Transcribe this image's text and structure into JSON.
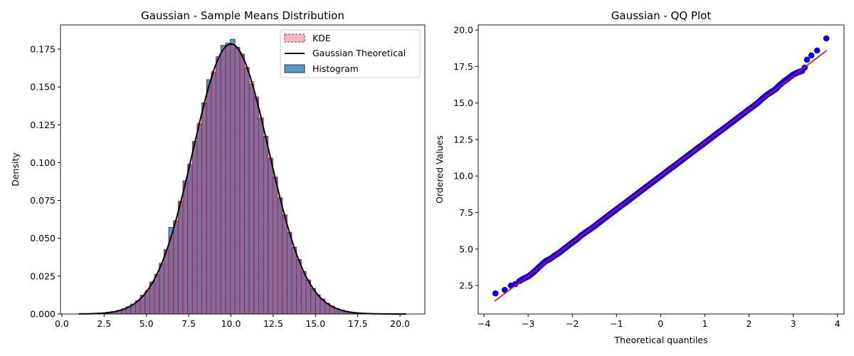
{
  "chart_data": [
    {
      "type": "bar",
      "title": "Gaussian - Sample Means Distribution",
      "xlabel": "",
      "ylabel": "Density",
      "xlim": [
        -0.08,
        21.47
      ],
      "ylim": [
        0,
        0.191
      ],
      "xticks": [
        "0.0",
        "2.5",
        "5.0",
        "7.5",
        "10.0",
        "12.5",
        "15.0",
        "17.5",
        "20.0"
      ],
      "xtick_values": [
        0,
        2.5,
        5,
        7.5,
        10,
        12.5,
        15,
        17.5,
        20
      ],
      "yticks": [
        "0.000",
        "0.025",
        "0.050",
        "0.075",
        "0.100",
        "0.125",
        "0.150",
        "0.175"
      ],
      "ytick_values": [
        0,
        0.025,
        0.05,
        0.075,
        0.1,
        0.125,
        0.15,
        0.175
      ],
      "grid": false,
      "legend": {
        "position": "top-right",
        "entries": [
          "KDE",
          "Gaussian Theoretical",
          "Histogram"
        ]
      },
      "colors": {
        "histogram": "#1f77b4",
        "kde_fill": "#dc143c",
        "kde_edge": "#dc143c",
        "theoretical": "#000000"
      },
      "bin_start": 1.0,
      "bin_width": 0.28,
      "histogram": [
        0.0001,
        0.0001,
        0.0002,
        0.0003,
        0.0006,
        0.0008,
        0.0011,
        0.0017,
        0.0024,
        0.0034,
        0.0048,
        0.0066,
        0.0085,
        0.0124,
        0.015,
        0.0212,
        0.0262,
        0.033,
        0.0425,
        0.0572,
        0.0615,
        0.0745,
        0.088,
        0.0985,
        0.114,
        0.1255,
        0.1395,
        0.1548,
        0.1595,
        0.17,
        0.1775,
        0.179,
        0.1815,
        0.1762,
        0.1718,
        0.1625,
        0.152,
        0.1435,
        0.129,
        0.1175,
        0.103,
        0.0905,
        0.0765,
        0.0655,
        0.054,
        0.044,
        0.036,
        0.028,
        0.0225,
        0.0168,
        0.0125,
        0.01,
        0.0072,
        0.0052,
        0.0038,
        0.0027,
        0.0019,
        0.0013,
        0.0009,
        0.0006,
        0.0004,
        0.0003,
        0.0002,
        0.0001,
        0.0001,
        0.0001,
        0.0001,
        0.0001,
        0.0001
      ],
      "kde": [
        0.0001,
        0.0001,
        0.0002,
        0.0003,
        0.0005,
        0.0007,
        0.001,
        0.0016,
        0.0023,
        0.0033,
        0.0046,
        0.0064,
        0.0088,
        0.0118,
        0.0157,
        0.0205,
        0.0263,
        0.0335,
        0.0417,
        0.051,
        0.0617,
        0.0735,
        0.0861,
        0.0993,
        0.1128,
        0.1261,
        0.1388,
        0.1505,
        0.1604,
        0.1685,
        0.1743,
        0.1775,
        0.1778,
        0.1755,
        0.1705,
        0.163,
        0.1535,
        0.1422,
        0.1298,
        0.1167,
        0.1031,
        0.0899,
        0.077,
        0.065,
        0.054,
        0.0442,
        0.0356,
        0.0282,
        0.022,
        0.017,
        0.0128,
        0.0095,
        0.007,
        0.005,
        0.0036,
        0.0025,
        0.0017,
        0.0012,
        0.0008,
        0.0005,
        0.0003,
        0.0002,
        0.0001,
        0.0001,
        0.0001,
        0,
        0,
        0,
        0
      ],
      "theoretical": {
        "mean": 10.0,
        "std": 2.236
      }
    },
    {
      "type": "scatter",
      "title": "Gaussian - QQ Plot",
      "xlabel": "Theoretical quantiles",
      "ylabel": "Ordered Values",
      "xlim": [
        -4.13,
        4.15
      ],
      "ylim": [
        0.55,
        20.35
      ],
      "xticks": [
        "−4",
        "−3",
        "−2",
        "−1",
        "0",
        "1",
        "2",
        "3",
        "4"
      ],
      "xtick_values": [
        -4,
        -3,
        -2,
        -1,
        0,
        1,
        2,
        3,
        4
      ],
      "yticks": [
        "2.5",
        "5.0",
        "7.5",
        "10.0",
        "12.5",
        "15.0",
        "17.5",
        "20.0"
      ],
      "ytick_values": [
        2.5,
        5,
        7.5,
        10,
        12.5,
        15,
        17.5,
        20
      ],
      "grid": false,
      "colors": {
        "points": "#0000ff",
        "fit_line": "#ff0000"
      },
      "fit_line": {
        "x": [
          -3.76,
          3.76
        ],
        "y": [
          1.43,
          18.6
        ]
      },
      "points": {
        "x": [
          -3.74,
          -3.53,
          -3.39,
          -3.29,
          -3.2,
          -3.1,
          -3.0,
          -2.9,
          -2.8,
          -2.7,
          -2.6,
          -2.5,
          -2.4,
          -2.3,
          -2.2,
          -2.1,
          -2.0,
          -1.9,
          -1.8,
          -1.7,
          -1.6,
          -1.5,
          -1.4,
          -1.3,
          -1.2,
          -1.1,
          -1.0,
          -0.9,
          -0.8,
          -0.7,
          -0.6,
          -0.5,
          -0.4,
          -0.3,
          -0.2,
          -0.1,
          0,
          0.1,
          0.2,
          0.3,
          0.4,
          0.5,
          0.6,
          0.7,
          0.8,
          0.9,
          1.0,
          1.1,
          1.2,
          1.3,
          1.4,
          1.5,
          1.6,
          1.7,
          1.8,
          1.9,
          2.0,
          2.1,
          2.2,
          2.3,
          2.4,
          2.5,
          2.6,
          2.7,
          2.8,
          2.9,
          3.0,
          3.1,
          3.2,
          3.26,
          3.31,
          3.41,
          3.54,
          3.75
        ],
        "y": [
          1.96,
          2.2,
          2.5,
          2.6,
          2.8,
          2.98,
          3.12,
          3.35,
          3.63,
          3.92,
          4.18,
          4.33,
          4.55,
          4.74,
          4.98,
          5.21,
          5.45,
          5.66,
          5.93,
          6.15,
          6.35,
          6.56,
          6.8,
          7.03,
          7.26,
          7.49,
          7.72,
          7.95,
          8.17,
          8.4,
          8.63,
          8.86,
          9.09,
          9.32,
          9.54,
          9.77,
          10.0,
          10.23,
          10.46,
          10.68,
          10.91,
          11.14,
          11.37,
          11.6,
          11.83,
          12.05,
          12.28,
          12.51,
          12.74,
          12.97,
          13.2,
          13.42,
          13.65,
          13.88,
          14.11,
          14.34,
          14.57,
          14.79,
          15.02,
          15.3,
          15.55,
          15.75,
          15.95,
          16.25,
          16.5,
          16.72,
          16.95,
          17.1,
          17.2,
          17.43,
          17.97,
          18.26,
          18.6,
          19.43
        ]
      }
    }
  ]
}
